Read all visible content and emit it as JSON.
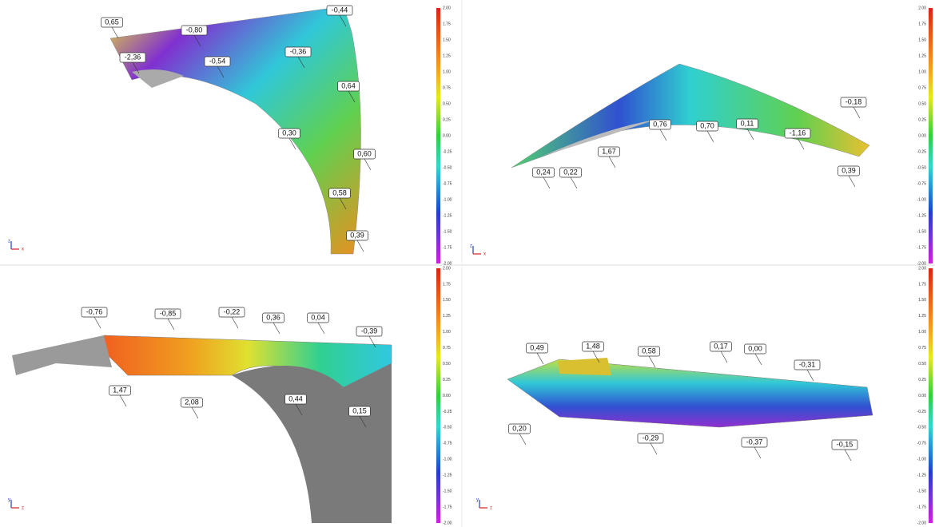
{
  "scale": {
    "ticks": [
      "2.00",
      "1.75",
      "1.50",
      "1.25",
      "1.00",
      "0.75",
      "0.50",
      "0.25",
      "0.00",
      "-0.25",
      "-0.50",
      "-0.75",
      "-1.00",
      "-1.25",
      "-1.50",
      "-1.75",
      "-2.00"
    ]
  },
  "views": [
    {
      "callouts": [
        "0,65",
        "-0,80",
        "-0,44",
        "-2,36",
        "-0,54",
        "-0,36",
        "0,64",
        "0,30",
        "0,60",
        "0,58",
        "0,39"
      ],
      "axes": [
        "z",
        "x"
      ]
    },
    {
      "callouts": [
        "-0,18",
        "0,76",
        "0,70",
        "0,11",
        "-1,16",
        "1,67",
        "0,24",
        "0,22",
        "0,39"
      ],
      "axes": [
        "z",
        "x"
      ]
    },
    {
      "callouts": [
        "-0,76",
        "-0,85",
        "-0,22",
        "0,36",
        "0,04",
        "-0,39",
        "1,47",
        "2,08",
        "0,44",
        "0,15"
      ],
      "axes": [
        "y",
        "z"
      ]
    },
    {
      "callouts": [
        "0,49",
        "1,48",
        "0,58",
        "0,17",
        "0,00",
        "-0,31",
        "0,20",
        "-0,29",
        "-0,37",
        "-0,15"
      ],
      "axes": [
        "y",
        "z"
      ]
    }
  ]
}
